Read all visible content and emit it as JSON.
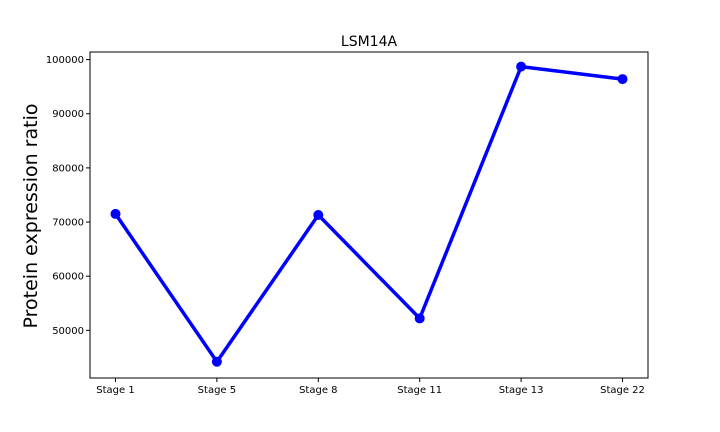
{
  "chart_data": {
    "type": "line",
    "title": "LSM14A",
    "xlabel": "",
    "ylabel": "Protein expression ratio",
    "categories": [
      "Stage 1",
      "Stage 5",
      "Stage 8",
      "Stage 11",
      "Stage 13",
      "Stage 22"
    ],
    "series": [
      {
        "values": [
          71500,
          44200,
          71300,
          52200,
          98700,
          96400
        ]
      }
    ],
    "ylim": [
      41200,
      101400
    ],
    "yticks": [
      50000,
      60000,
      70000,
      80000,
      90000,
      100000
    ],
    "ytick_labels": [
      "50000",
      "60000",
      "70000",
      "80000",
      "90000",
      "100000"
    ],
    "grid": false,
    "colors": {
      "line": "#0000ff",
      "marker": "#0000ff",
      "axes": "#000000"
    }
  }
}
